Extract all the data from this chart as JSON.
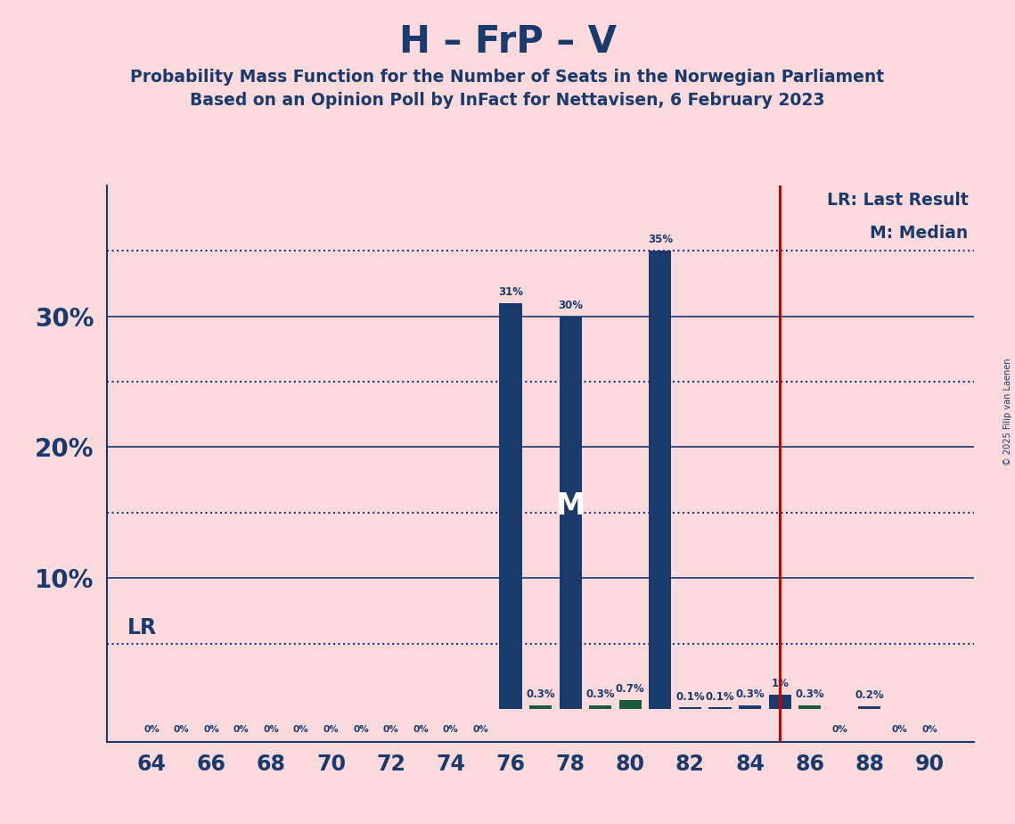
{
  "title": "H – FrP – V",
  "subtitle1": "Probability Mass Function for the Number of Seats in the Norwegian Parliament",
  "subtitle2": "Based on an Opinion Poll by InFact for Nettavisen, 6 February 2023",
  "copyright": "© 2025 Filip van Laenen",
  "background_color": "#FADADD",
  "bar_color": "#1a3a6b",
  "green_bar_color": "#1a5c3a",
  "title_color": "#1a3a6b",
  "lr_line_color": "#cc0000",
  "lr_value": 85,
  "lr_y": 5.0,
  "median_value": 78,
  "seats": [
    64,
    65,
    66,
    67,
    68,
    69,
    70,
    71,
    72,
    73,
    74,
    75,
    76,
    77,
    78,
    79,
    80,
    81,
    82,
    83,
    84,
    85,
    86,
    87,
    88,
    89,
    90
  ],
  "probabilities": [
    0.0,
    0.0,
    0.0,
    0.0,
    0.0,
    0.0,
    0.0,
    0.0,
    0.0,
    0.0,
    0.0,
    0.0,
    31.0,
    0.3,
    30.0,
    0.3,
    0.7,
    35.0,
    0.1,
    0.1,
    0.3,
    1.1,
    0.3,
    0.0,
    0.2,
    0.0,
    0.0
  ],
  "green_seats": [
    77,
    79,
    80,
    86
  ],
  "xlabel_seats": [
    64,
    66,
    68,
    70,
    72,
    74,
    76,
    78,
    80,
    82,
    84,
    86,
    88,
    90
  ],
  "solid_hlines": [
    10,
    20,
    30
  ],
  "dotted_hlines": [
    5,
    15,
    25,
    35
  ],
  "ylim": [
    0,
    40
  ],
  "xlim": [
    62.5,
    91.5
  ],
  "legend_lr": "LR: Last Result",
  "legend_m": "M: Median",
  "bar_width": 0.75
}
